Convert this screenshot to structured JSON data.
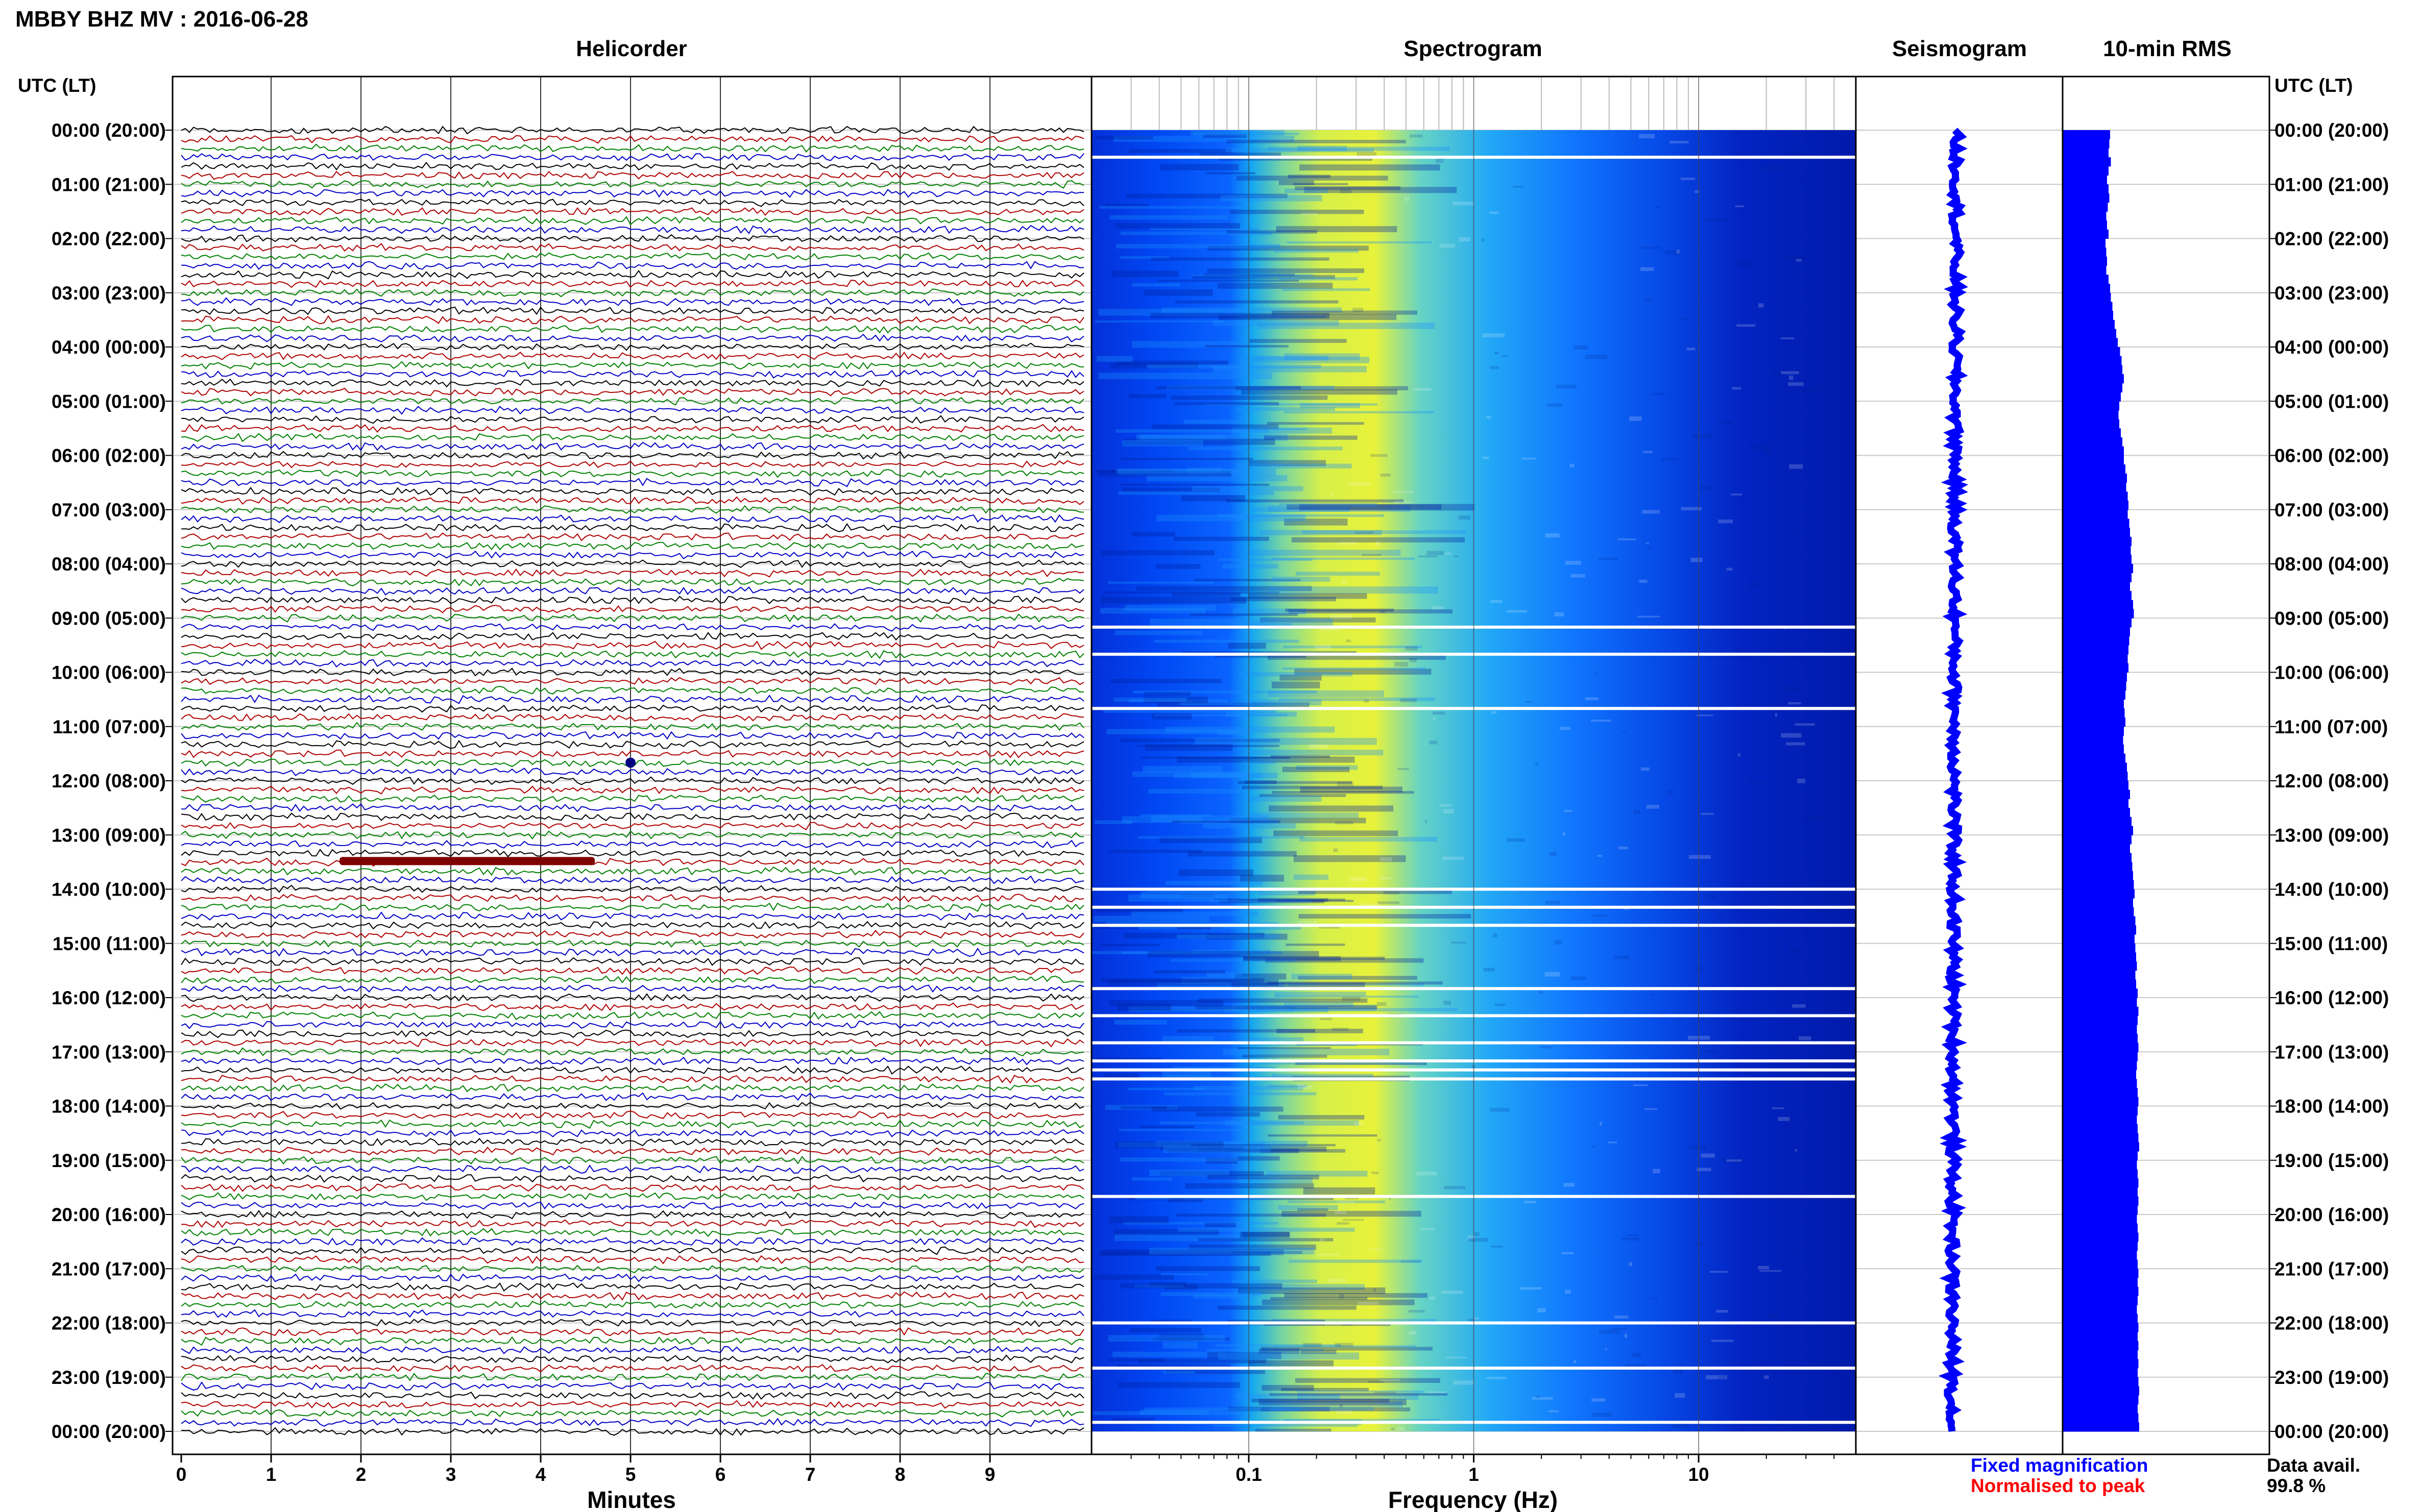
{
  "header": {
    "title": "MBBY BHZ MV : 2016-06-28",
    "utc_label_left": "UTC (LT)",
    "utc_label_right": "UTC (LT)"
  },
  "panels": {
    "helicorder": "Helicorder",
    "spectrogram": "Spectrogram",
    "seismogram": "Seismogram",
    "rms": "10-min RMS"
  },
  "axes": {
    "helicorder_xlabel": "Minutes",
    "spectrogram_xlabel": "Frequency (Hz)",
    "minute_ticks": [
      "0",
      "1",
      "2",
      "3",
      "4",
      "5",
      "6",
      "7",
      "8",
      "9"
    ],
    "freq_ticks": [
      {
        "label": "0.1",
        "value": 0.1
      },
      {
        "label": "1",
        "value": 1
      },
      {
        "label": "10",
        "value": 10
      }
    ]
  },
  "time_labels": [
    "00:00 (20:00)",
    "01:00 (21:00)",
    "02:00 (22:00)",
    "03:00 (23:00)",
    "04:00 (00:00)",
    "05:00 (01:00)",
    "06:00 (02:00)",
    "07:00 (03:00)",
    "08:00 (04:00)",
    "09:00 (05:00)",
    "10:00 (06:00)",
    "11:00 (07:00)",
    "12:00 (08:00)",
    "13:00 (09:00)",
    "14:00 (10:00)",
    "15:00 (11:00)",
    "16:00 (12:00)",
    "17:00 (13:00)",
    "18:00 (14:00)",
    "19:00 (15:00)",
    "20:00 (16:00)",
    "21:00 (17:00)",
    "22:00 (18:00)",
    "23:00 (19:00)",
    "00:00 (20:00)"
  ],
  "footer": {
    "fixed_magnification": "Fixed magnification",
    "normalised_to_peak": "Normalised to peak",
    "data_avail_label": "Data avail.",
    "data_avail_value": "99.8 %"
  },
  "colors": {
    "trace_cycle": [
      "#000000",
      "#b00000",
      "#008000",
      "#0000c8"
    ],
    "seismogram": "#0000ff",
    "rms": "#0000ff",
    "fixed_magnification": "#0000ff",
    "normalised_to_peak": "#ff0000"
  },
  "chart_data": [
    {
      "type": "line",
      "title": "Helicorder",
      "xlabel": "Minutes",
      "xlim": [
        0,
        10
      ],
      "ylabel": "UTC (LT)",
      "grid": true,
      "rows_per_hour": 6,
      "hours": 24,
      "trace_colors_cycle": [
        "black",
        "dark red",
        "green",
        "blue"
      ],
      "notable_events": [
        {
          "time_utc": "11:40",
          "minute": 5.0,
          "description": "small burst"
        },
        {
          "time_utc": "13:30",
          "minute": 2.5,
          "description": "large-amplitude burst (dark red)"
        }
      ]
    },
    {
      "type": "heatmap",
      "title": "Spectrogram",
      "xlabel": "Frequency (Hz)",
      "xscale": "log",
      "xlim": [
        0.02,
        50
      ],
      "ylabel": "UTC (LT)",
      "peak_energy_band_hz": [
        0.2,
        0.5
      ],
      "data_gaps_utc": [
        "00:30",
        "09:10",
        "09:40",
        "10:40",
        "14:00",
        "14:20",
        "14:40",
        "15:50",
        "16:20",
        "16:50",
        "17:10",
        "17:20",
        "17:30",
        "19:40",
        "22:00",
        "22:50",
        "23:50"
      ]
    },
    {
      "type": "line",
      "title": "Seismogram",
      "ylabel": "UTC (LT)",
      "note": "Fixed magnification"
    },
    {
      "type": "bar",
      "title": "10-min RMS",
      "ylabel": "UTC (LT)",
      "note": "Normalised to peak",
      "values_relative": [
        0.62,
        0.61,
        0.6,
        0.63,
        0.6,
        0.58,
        0.6,
        0.61,
        0.59,
        0.57,
        0.58,
        0.6,
        0.56,
        0.57,
        0.58,
        0.57,
        0.6,
        0.62,
        0.63,
        0.65,
        0.66,
        0.68,
        0.7,
        0.72,
        0.75,
        0.77,
        0.78,
        0.8,
        0.78,
        0.76,
        0.74,
        0.73,
        0.74,
        0.76,
        0.78,
        0.8,
        0.8,
        0.82,
        0.84,
        0.83,
        0.85,
        0.86,
        0.85,
        0.87,
        0.88,
        0.9,
        0.89,
        0.9,
        0.92,
        0.9,
        0.88,
        0.9,
        0.92,
        0.93,
        0.9,
        0.88,
        0.87,
        0.86,
        0.85,
        0.86,
        0.84,
        0.83,
        0.82,
        0.8,
        0.81,
        0.82,
        0.8,
        0.79,
        0.8,
        0.82,
        0.84,
        0.85,
        0.86,
        0.88,
        0.86,
        0.88,
        0.9,
        0.92,
        0.9,
        0.88,
        0.9,
        0.91,
        0.92,
        0.93,
        0.94,
        0.92,
        0.93,
        0.95,
        0.96,
        0.94,
        0.95,
        0.96,
        0.97,
        0.95,
        0.96,
        0.98,
        0.97,
        0.99,
        0.98,
        0.97,
        0.98,
        0.99,
        0.98,
        0.97,
        0.96,
        0.97,
        0.98,
        0.99,
        0.98,
        0.97,
        0.98,
        0.99,
        1.0,
        0.98,
        0.97,
        0.98,
        0.99,
        0.98,
        0.99,
        0.98,
        0.97,
        0.98,
        0.99,
        0.98,
        0.97,
        0.98,
        0.99,
        0.98,
        0.99,
        0.98,
        0.97,
        0.98,
        0.99,
        0.98,
        0.99,
        0.98,
        0.99,
        0.98,
        0.99,
        1.0,
        0.99,
        0.98,
        0.99,
        1.0
      ]
    }
  ]
}
